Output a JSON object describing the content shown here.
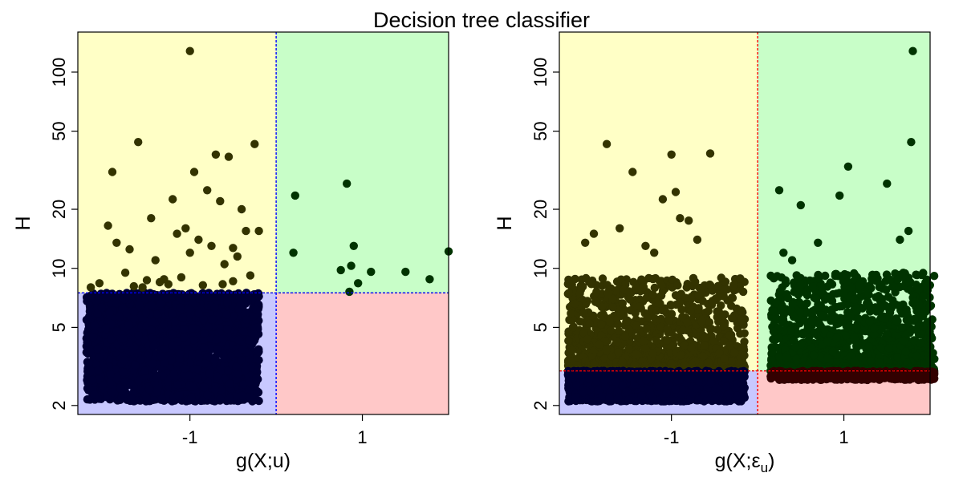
{
  "title": "Decision tree classifier",
  "colors": {
    "region_top_left": "#ffffc6",
    "region_top_right": "#c8fec8",
    "region_bottom_left": "#c8c8ff",
    "region_bottom_right": "#ffc8c8",
    "point_top_left": "#333300",
    "point_top_right": "#003300",
    "point_bottom_left": "#000033",
    "point_bottom_right": "#330000",
    "boundary_left_panel": "#0000ff",
    "boundary_right_panel": "#ff0000"
  },
  "chart_data": [
    {
      "type": "scatter",
      "xlabel": "g(X;u)",
      "ylabel": "H",
      "y_scale": "log",
      "x_ticks": [
        -1,
        1
      ],
      "x_tick_labels": [
        "-1",
        "1"
      ],
      "y_ticks": [
        2,
        5,
        10,
        20,
        50,
        100
      ],
      "y_tick_labels": [
        "2",
        "5",
        "10",
        "20",
        "50",
        "100"
      ],
      "xlim": [
        -2.3,
        2.0
      ],
      "ylim": [
        1.8,
        160
      ],
      "split": {
        "x": 0.0,
        "y": 7.5
      },
      "dense_band": {
        "x_range": [
          -2.2,
          -0.2
        ],
        "y_range": [
          2.1,
          7.5
        ],
        "count": 2600,
        "class": "bottom-left"
      },
      "sparse_points": {
        "x": [
          -2.05,
          -1.95,
          -1.7,
          -1.55,
          -1.85,
          -1.75,
          -1.4,
          -1.3,
          -1.15,
          -1.0,
          -0.85,
          -0.75,
          -0.6,
          -0.5,
          -0.35,
          -0.3,
          -0.45,
          -0.65,
          -0.9,
          -1.1,
          -1.25,
          -1.45,
          -1.6,
          -0.95,
          -0.8,
          -0.7,
          -0.55,
          -0.4,
          -1.35,
          -1.05,
          -1.65,
          -1.2,
          -0.5,
          -0.25,
          -2.15,
          -0.2,
          -1.9,
          -0.62,
          -1.5
        ],
        "y": [
          8.4,
          16.5,
          12.5,
          8.0,
          13.5,
          9.5,
          11.0,
          8.8,
          15.0,
          12.0,
          8.2,
          13.0,
          10.5,
          8.6,
          15.5,
          9.2,
          11.5,
          22.0,
          14.0,
          9.0,
          8.3,
          18.0,
          44.0,
          31.0,
          25.0,
          38.0,
          37.0,
          20.0,
          8.5,
          16.0,
          8.1,
          22.5,
          12.7,
          43.0,
          8.0,
          15.5,
          31.0,
          8.3,
          8.7
        ]
      },
      "right_points": {
        "x": [
          0.22,
          0.2,
          0.82,
          0.87,
          0.9,
          0.95,
          1.1,
          1.5,
          1.78,
          2.0,
          0.75
        ],
        "y": [
          23.5,
          12.0,
          27.0,
          10.3,
          13.0,
          8.4,
          9.6,
          9.6,
          8.8,
          12.2,
          9.8
        ]
      },
      "boundary_point": {
        "x": 0.85,
        "y": 7.6
      },
      "top_point": {
        "x": -1.0,
        "y": 128
      }
    },
    {
      "type": "scatter",
      "xlabel": "g(X;ε",
      "xlabel_sub": "u",
      "xlabel_close": ")",
      "ylabel": "H",
      "y_scale": "log",
      "x_ticks": [
        -1,
        1
      ],
      "x_tick_labels": [
        "-1",
        "1"
      ],
      "y_ticks": [
        2,
        5,
        10,
        20,
        50,
        100
      ],
      "y_tick_labels": [
        "2",
        "5",
        "10",
        "20",
        "50",
        "100"
      ],
      "xlim": [
        -2.3,
        2.0
      ],
      "ylim": [
        1.8,
        160
      ],
      "split": {
        "x": 0.0,
        "y": 3.0
      },
      "left_band": {
        "x_range": [
          -2.2,
          -0.15
        ],
        "y_range": [
          2.1,
          3.0
        ],
        "count": 1800,
        "class": "bottom-left"
      },
      "left_cloud": {
        "x_range": [
          -2.2,
          -0.15
        ],
        "y_range": [
          3.0,
          9.0
        ],
        "count": 1500,
        "class": "top-left"
      },
      "right_band": {
        "x_range": [
          0.15,
          2.05
        ],
        "y_range": [
          2.7,
          3.0
        ],
        "count": 500,
        "class": "bottom-right"
      },
      "right_cloud": {
        "x_range": [
          0.15,
          2.05
        ],
        "y_range": [
          3.0,
          9.5
        ],
        "count": 1500,
        "class": "top-right"
      },
      "left_outliers": {
        "x": [
          -1.75,
          -1.45,
          -1.3,
          -1.0,
          -0.9,
          -0.8,
          -1.1,
          -0.55,
          -1.6,
          -2.0,
          -1.9,
          -0.95,
          -0.7,
          -1.2
        ],
        "y": [
          43.0,
          31.0,
          13.0,
          38.0,
          18.0,
          17.5,
          22.5,
          38.5,
          16.0,
          13.5,
          15.0,
          24.5,
          14.0,
          12.0
        ]
      },
      "right_outliers": {
        "x": [
          0.25,
          0.5,
          1.05,
          0.7,
          1.5,
          1.78,
          1.65,
          1.75,
          0.3,
          0.4,
          0.95,
          1.8
        ],
        "y": [
          25.0,
          21.0,
          33.0,
          13.5,
          27.0,
          44.0,
          14.0,
          15.5,
          12.0,
          11.0,
          23.5,
          128
        ]
      }
    }
  ]
}
